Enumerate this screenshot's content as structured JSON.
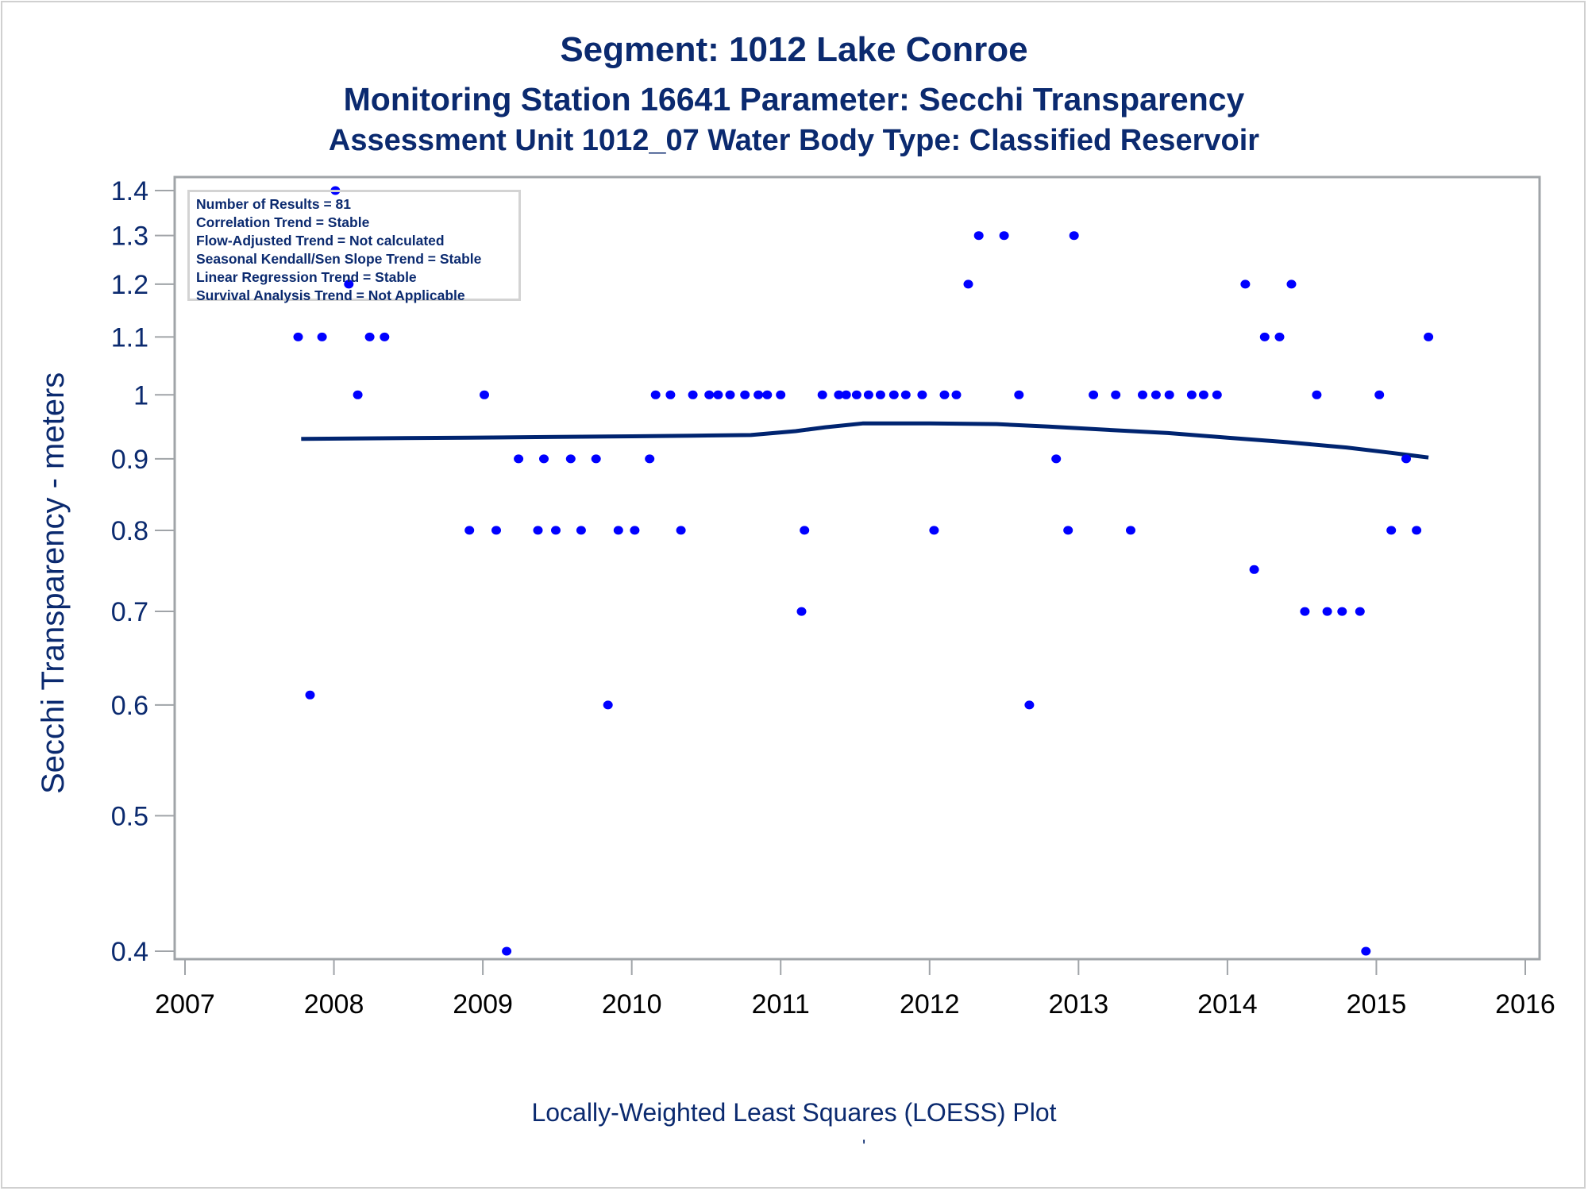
{
  "header": {
    "title": "Segment: 1012  Lake Conroe",
    "subtitle": "Monitoring Station 16641 Parameter: Secchi Transparency",
    "subtitle2": "Assessment Unit 1012_07   Water Body Type: Classified Reservoir"
  },
  "footer": {
    "caption": "Locally-Weighted Least Squares (LOESS) Plot",
    "mark": "'"
  },
  "legend": {
    "lines": [
      "Number of Results = 81",
      "Correlation Trend = Stable",
      "Flow-Adjusted Trend = Not calculated",
      "Seasonal Kendall/Sen Slope Trend = Stable",
      "Linear Regression Trend = Stable",
      "Survival Analysis Trend = Not Applicable"
    ]
  },
  "colors": {
    "text": "#0b2a6f",
    "points": "#0000ff",
    "loess": "#002470",
    "axis": "#a0a4a8"
  },
  "chart_data": {
    "type": "scatter",
    "title": "Segment: 1012  Lake Conroe",
    "xlabel": "",
    "ylabel": "Secchi Transparency - meters",
    "xlim": [
      2007,
      2016
    ],
    "ylim": [
      0.4,
      1.4
    ],
    "yscale": "log",
    "grid": false,
    "legend_position": "top-left",
    "xticks": [
      "2007",
      "2008",
      "2009",
      "2010",
      "2011",
      "2012",
      "2013",
      "2014",
      "2015",
      "2016"
    ],
    "yticks": [
      "1.4",
      "1.3",
      "1.2",
      "1.1",
      "1",
      "0.9",
      "0.8",
      "0.7",
      "0.6",
      "0.5",
      "0.4"
    ],
    "series": [
      {
        "name": "Secchi Transparency observations",
        "kind": "points",
        "x": [
          2007.76,
          2007.84,
          2007.92,
          2008.01,
          2008.1,
          2008.16,
          2008.24,
          2008.34,
          2008.91,
          2009.01,
          2009.09,
          2009.16,
          2009.24,
          2009.37,
          2009.41,
          2009.49,
          2009.59,
          2009.66,
          2009.76,
          2009.84,
          2009.91,
          2010.02,
          2010.12,
          2010.16,
          2010.26,
          2010.33,
          2010.41,
          2010.52,
          2010.58,
          2010.66,
          2010.76,
          2010.85,
          2010.91,
          2011.0,
          2011.14,
          2011.16,
          2011.28,
          2011.39,
          2011.44,
          2011.51,
          2011.59,
          2011.67,
          2011.76,
          2011.84,
          2011.95,
          2012.03,
          2012.1,
          2012.18,
          2012.26,
          2012.33,
          2012.5,
          2012.6,
          2012.67,
          2012.85,
          2012.93,
          2012.97,
          2013.1,
          2013.25,
          2013.35,
          2013.43,
          2013.52,
          2013.61,
          2013.76,
          2013.84,
          2013.93,
          2014.12,
          2014.18,
          2014.25,
          2014.35,
          2014.43,
          2014.52,
          2014.6,
          2014.67,
          2014.77,
          2014.89,
          2014.93,
          2015.02,
          2015.1,
          2015.2,
          2015.27,
          2015.35
        ],
        "y": [
          1.1,
          0.61,
          1.1,
          1.4,
          1.2,
          1.0,
          1.1,
          1.1,
          0.8,
          1.0,
          0.8,
          0.4,
          0.9,
          0.8,
          0.9,
          0.8,
          0.9,
          0.8,
          0.9,
          0.6,
          0.8,
          0.8,
          0.9,
          1.0,
          1.0,
          0.8,
          1.0,
          1.0,
          1.0,
          1.0,
          1.0,
          1.0,
          1.0,
          1.0,
          0.7,
          0.8,
          1.0,
          1.0,
          1.0,
          1.0,
          1.0,
          1.0,
          1.0,
          1.0,
          1.0,
          0.8,
          1.0,
          1.0,
          1.2,
          1.3,
          1.3,
          1.0,
          0.6,
          0.9,
          0.8,
          1.3,
          1.0,
          1.0,
          0.8,
          1.0,
          1.0,
          1.0,
          1.0,
          1.0,
          1.0,
          1.2,
          0.75,
          1.1,
          1.1,
          1.2,
          0.7,
          1.0,
          0.7,
          0.7,
          0.7,
          0.4,
          1.0,
          0.8,
          0.9,
          0.8,
          1.1
        ]
      },
      {
        "name": "LOESS fit",
        "kind": "line",
        "x": [
          2007.78,
          2008.3,
          2008.9,
          2009.5,
          2010.0,
          2010.4,
          2010.8,
          2011.1,
          2011.3,
          2011.55,
          2012.0,
          2012.45,
          2012.8,
          2013.2,
          2013.6,
          2014.0,
          2014.4,
          2014.8,
          2015.1,
          2015.35
        ],
        "y": [
          0.93,
          0.931,
          0.932,
          0.933,
          0.934,
          0.935,
          0.936,
          0.942,
          0.948,
          0.954,
          0.954,
          0.953,
          0.949,
          0.944,
          0.939,
          0.932,
          0.925,
          0.917,
          0.909,
          0.902
        ]
      }
    ]
  }
}
